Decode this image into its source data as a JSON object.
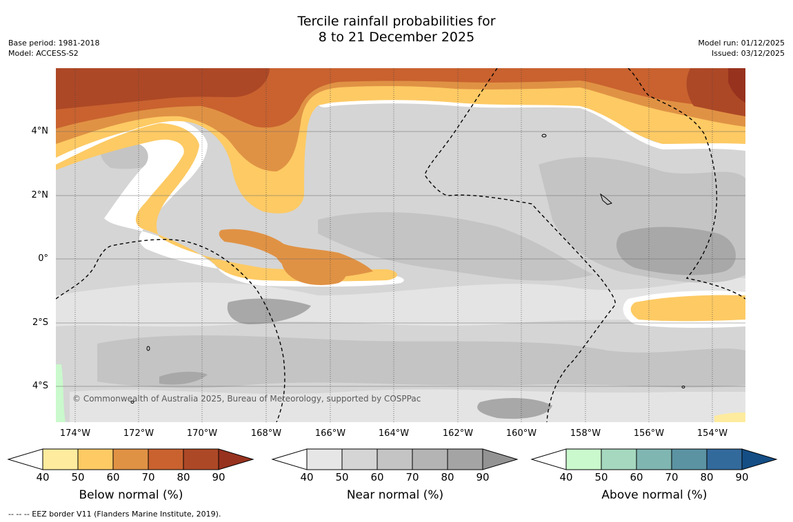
{
  "header": {
    "title_line1": "Tercile rainfall probabilities for",
    "title_line2": "8 to 21 December 2025",
    "base_period": "Base period: 1981-2018",
    "model": "Model: ACCESS-S2",
    "model_run": "Model run: 01/12/2025",
    "issued": "Issued: 03/12/2025"
  },
  "map": {
    "y_labels": [
      "4°N",
      "2°N",
      "0°",
      "2°S",
      "4°S"
    ],
    "x_labels": [
      "174°W",
      "172°W",
      "170°W",
      "168°W",
      "166°W",
      "164°W",
      "162°W",
      "160°W",
      "158°W",
      "156°W",
      "154°W"
    ],
    "copyright": "© Commonwealth of Australia 2025, Bureau of Meteorology, supported by COSPPac"
  },
  "colorbars": [
    {
      "label": "Below normal (%)",
      "ticks": [
        "40",
        "50",
        "60",
        "70",
        "80",
        "90"
      ],
      "colors": [
        "#ffffff",
        "#feeb9e",
        "#fdca64",
        "#e09244",
        "#c9622f",
        "#ad4826",
        "#97321e"
      ]
    },
    {
      "label": "Near normal (%)",
      "ticks": [
        "40",
        "50",
        "60",
        "70",
        "80",
        "90"
      ],
      "colors": [
        "#ffffff",
        "#e6e6e6",
        "#d5d5d5",
        "#c4c4c4",
        "#b4b4b4",
        "#a4a4a4",
        "#939393"
      ]
    },
    {
      "label": "Above normal (%)",
      "ticks": [
        "40",
        "50",
        "60",
        "70",
        "80",
        "90"
      ],
      "colors": [
        "#ffffff",
        "#c9f9cc",
        "#a5d8bf",
        "#80b6b2",
        "#5b93a3",
        "#336a9c",
        "#144e85"
      ]
    }
  ],
  "footnote": "--  --  -- EEZ border V11 (Flanders Marine Institute, 2019)."
}
